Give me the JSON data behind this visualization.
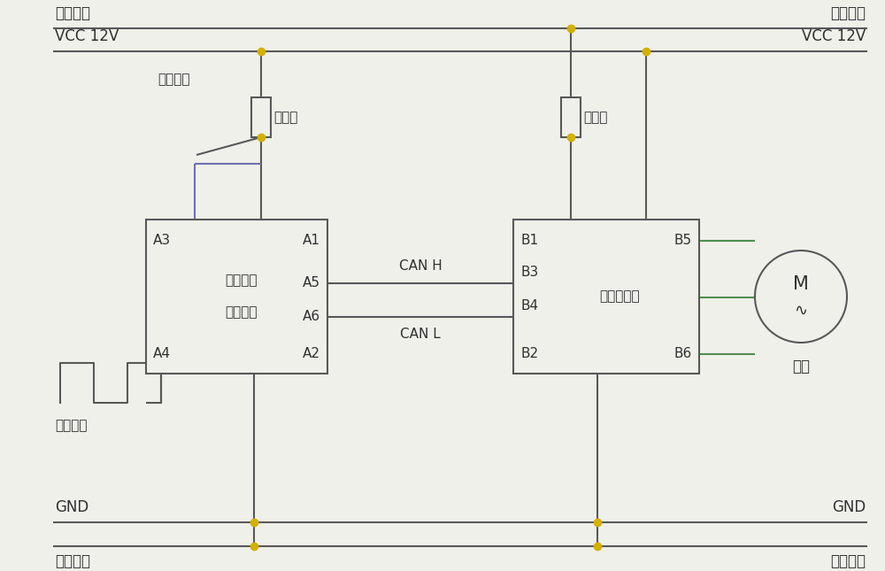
{
  "bg_color": "#f0f0eb",
  "line_color": "#585858",
  "line_color_blue": "#7070b0",
  "line_color_green": "#509050",
  "dot_color": "#d4b000",
  "text_color": "#303030",
  "font_size": 12,
  "font_size_small": 11,
  "high_pos_label": "高压正极",
  "vcc_label": "VCC 12V",
  "gnd_label": "GND",
  "high_neg_label": "高压负极",
  "brake_label": "制动信号",
  "fuse_label": "燔断器",
  "speed_label": "车速信号",
  "can_h_label": "CAN H",
  "can_l_label": "CAN L",
  "ctrl_label1": "回馈制动",
  "ctrl_label2": "控制装置",
  "motor_ctrl_label": "电机控制器",
  "motor_label": "电机"
}
